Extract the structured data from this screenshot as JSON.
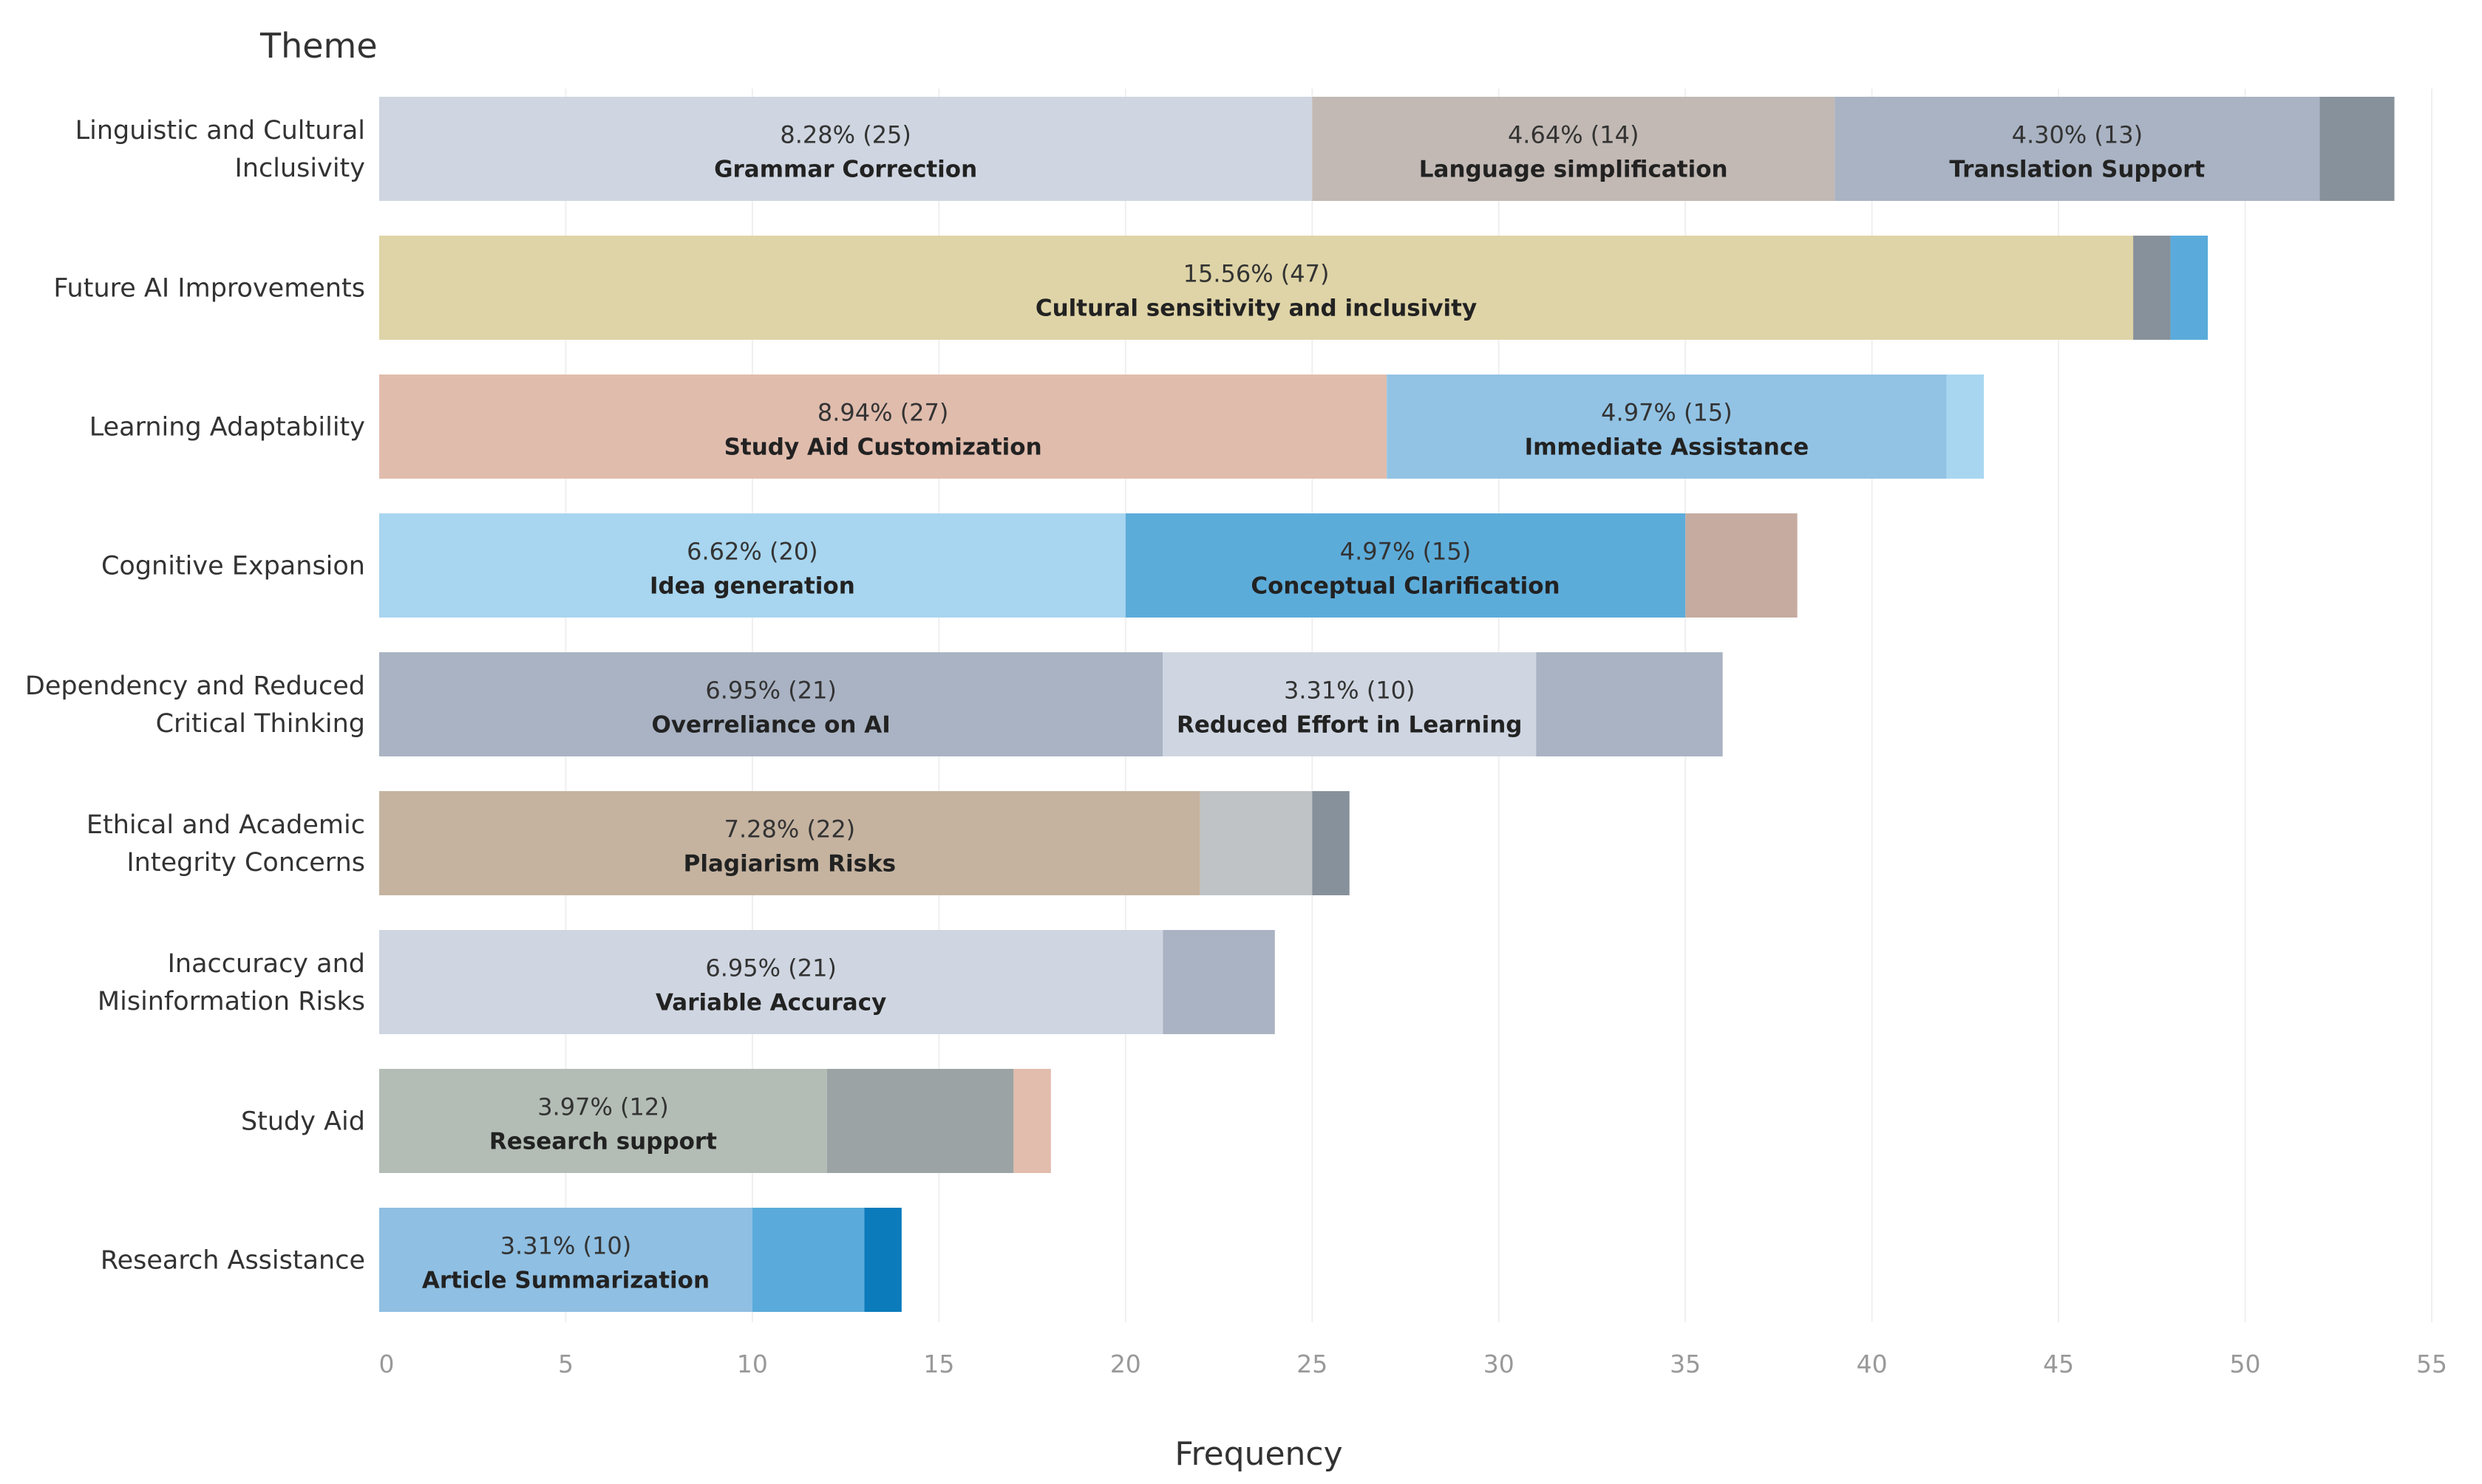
{
  "chart_data": {
    "type": "bar",
    "orientation": "horizontal",
    "stacked": true,
    "header": "Theme",
    "xlabel": "Frequency",
    "xlim": [
      0,
      55
    ],
    "xticks": [
      0,
      5,
      10,
      15,
      20,
      25,
      30,
      35,
      40,
      45,
      50,
      55
    ],
    "grid": true,
    "categories": [
      {
        "label_lines": [
          "Linguistic and Cultural",
          "Inclusivity"
        ],
        "segments": [
          {
            "value": 25,
            "pct": "8.28% (25)",
            "name": "Grammar Correction",
            "color": "#cfd6e1"
          },
          {
            "value": 14,
            "pct": "4.64% (14)",
            "name": "Language simplification",
            "color": "#c2b9b4"
          },
          {
            "value": 13,
            "pct": "4.30% (13)",
            "name": "Translation Support",
            "color": "#a9b3c3"
          },
          {
            "value": 2,
            "color": "#87919b"
          }
        ]
      },
      {
        "label_lines": [
          "Future AI Improvements"
        ],
        "segments": [
          {
            "value": 47,
            "pct": "15.56% (47)",
            "name": "Cultural sensitivity and inclusivity",
            "color": "#dfd4a7"
          },
          {
            "value": 1,
            "color": "#87919b"
          },
          {
            "value": 1,
            "color": "#5aabdb"
          }
        ]
      },
      {
        "label_lines": [
          "Learning Adaptability"
        ],
        "segments": [
          {
            "value": 27,
            "pct": "8.94% (27)",
            "name": "Study Aid Customization",
            "color": "#e0bcad"
          },
          {
            "value": 15,
            "pct": "4.97% (15)",
            "name": "Immediate Assistance",
            "color": "#92c3e4"
          },
          {
            "value": 1,
            "color": "#a8d6f0"
          }
        ]
      },
      {
        "label_lines": [
          "Cognitive Expansion"
        ],
        "segments": [
          {
            "value": 20,
            "pct": "6.62% (20)",
            "name": "Idea generation",
            "color": "#a8d5ef"
          },
          {
            "value": 15,
            "pct": "4.97% (15)",
            "name": "Conceptual Clarification",
            "color": "#5cacda"
          },
          {
            "value": 3,
            "color": "#c5aba0"
          }
        ]
      },
      {
        "label_lines": [
          "Dependency and Reduced",
          "Critical Thinking"
        ],
        "segments": [
          {
            "value": 21,
            "pct": "6.95% (21)",
            "name": "Overreliance on AI",
            "color": "#a9b3c3"
          },
          {
            "value": 10,
            "pct": "3.31% (10)",
            "name": "Reduced Effort in Learning",
            "color": "#cfd6e1"
          },
          {
            "value": 5,
            "color": "#a9b3c3"
          }
        ]
      },
      {
        "label_lines": [
          "Ethical and Academic",
          "Integrity Concerns"
        ],
        "segments": [
          {
            "value": 22,
            "pct": "7.28% (22)",
            "name": "Plagiarism Risks",
            "color": "#c5b3a0"
          },
          {
            "value": 3,
            "color": "#bfc3c6"
          },
          {
            "value": 1,
            "color": "#87919b"
          }
        ]
      },
      {
        "label_lines": [
          "Inaccuracy and",
          "Misinformation Risks"
        ],
        "segments": [
          {
            "value": 21,
            "pct": "6.95% (21)",
            "name": "Variable Accuracy",
            "color": "#cfd6e1"
          },
          {
            "value": 3,
            "color": "#a9b3c3"
          }
        ]
      },
      {
        "label_lines": [
          "Study Aid"
        ],
        "segments": [
          {
            "value": 12,
            "pct": "3.97% (12)",
            "name": "Research support",
            "color": "#b3bdb5"
          },
          {
            "value": 5,
            "color": "#9ba3a5"
          },
          {
            "value": 1,
            "color": "#e2bcac"
          }
        ]
      },
      {
        "label_lines": [
          "Research Assistance"
        ],
        "segments": [
          {
            "value": 10,
            "pct": "3.31% (10)",
            "name": "Article Summarization",
            "color": "#8fbfe2"
          },
          {
            "value": 3,
            "color": "#5aabdb"
          },
          {
            "value": 1,
            "color": "#0b7bbb"
          }
        ]
      }
    ]
  }
}
